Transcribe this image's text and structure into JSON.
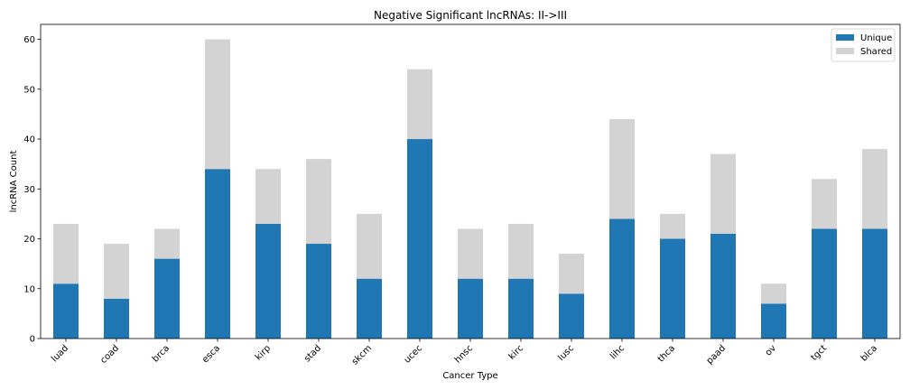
{
  "chart_data": {
    "type": "bar",
    "stacked": true,
    "title": "Negative Significant lncRNAs: II->III",
    "xlabel": "Cancer Type",
    "ylabel": "lncRNA Count",
    "ylim": [
      0,
      63
    ],
    "yticks": [
      0,
      10,
      20,
      30,
      40,
      50,
      60
    ],
    "grid": false,
    "legend_position": "top-right",
    "categories": [
      "luad",
      "coad",
      "brca",
      "esca",
      "kirp",
      "stad",
      "skcm",
      "ucec",
      "hnsc",
      "kirc",
      "lusc",
      "lihc",
      "thca",
      "paad",
      "ov",
      "tgct",
      "blca"
    ],
    "series": [
      {
        "name": "Unique",
        "color": "#1f77b4",
        "values": [
          11,
          8,
          16,
          34,
          23,
          19,
          12,
          40,
          12,
          12,
          9,
          24,
          20,
          21,
          7,
          22,
          22
        ]
      },
      {
        "name": "Shared",
        "color": "#d3d3d3",
        "values": [
          12,
          11,
          6,
          26,
          11,
          17,
          13,
          14,
          10,
          11,
          8,
          20,
          5,
          16,
          4,
          10,
          16
        ]
      }
    ]
  }
}
